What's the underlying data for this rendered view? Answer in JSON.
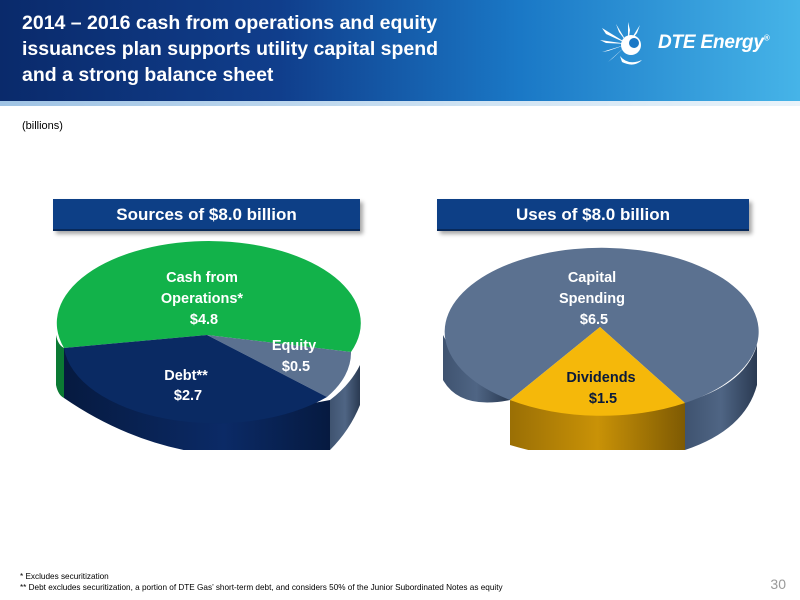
{
  "header": {
    "title_lines": [
      "2014 – 2016 cash from operations and equity",
      "issuances plan supports utility capital spend",
      "and a strong balance sheet"
    ],
    "logo_text": "DTE Energy",
    "logo_trademark": "®"
  },
  "units_note": "(billions)",
  "banners": {
    "sources": "Sources of $8.0 billion",
    "uses": "Uses of $8.0 billion"
  },
  "colors": {
    "cash_from_operations": "#12b24a",
    "debt": "#0a2a63",
    "equity": "#5b7190",
    "capital_spending": "#5b7190",
    "dividends": "#f5b80a",
    "banner": "#0d3f86"
  },
  "chart_data": [
    {
      "type": "pie",
      "title": "Sources of $8.0 billion",
      "unit": "billions",
      "slices": [
        {
          "label_lines": [
            "Cash from",
            "Operations*",
            "$4.8"
          ],
          "name": "Cash from Operations*",
          "value": 4.8,
          "color": "#12b24a"
        },
        {
          "label_lines": [
            "Equity",
            "$0.5"
          ],
          "name": "Equity",
          "value": 0.5,
          "color": "#5b7190"
        },
        {
          "label_lines": [
            "Debt**",
            "$2.7"
          ],
          "name": "Debt**",
          "value": 2.7,
          "color": "#0a2a63"
        }
      ]
    },
    {
      "type": "pie",
      "title": "Uses of $8.0 billion",
      "unit": "billions",
      "slices": [
        {
          "label_lines": [
            "Capital",
            "Spending",
            "$6.5"
          ],
          "name": "Capital Spending",
          "value": 6.5,
          "color": "#5b7190"
        },
        {
          "label_lines": [
            "Dividends",
            "$1.5"
          ],
          "name": "Dividends",
          "value": 1.5,
          "color": "#f5b80a"
        }
      ]
    }
  ],
  "footnotes": [
    "* Excludes securitization",
    "** Debt excludes securitization, a portion of DTE Gas’ short-term debt, and considers 50% of the Junior Subordinated Notes as equity"
  ],
  "page_number": "30"
}
